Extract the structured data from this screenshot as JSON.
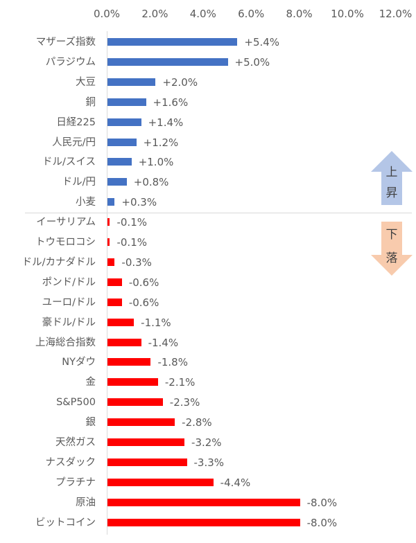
{
  "chart_data": {
    "type": "bar",
    "orientation": "horizontal",
    "title": "",
    "xlabel": "",
    "ylabel": "",
    "xlim": [
      0,
      12
    ],
    "x_ticks": [
      "0.0%",
      "2.0%",
      "4.0%",
      "6.0%",
      "8.0%",
      "10.0%",
      "12.0%"
    ],
    "x_axis_position": "top",
    "grid": false,
    "note": "Bar lengths show absolute magnitude; rising items blue, falling items red",
    "categories": [
      "マザーズ指数",
      "パラジウム",
      "大豆",
      "銅",
      "日経225",
      "人民元/円",
      "ドル/スイス",
      "ドル/円",
      "小麦",
      "イーサリアム",
      "トウモロコシ",
      "ドル/カナダドル",
      "ポンド/ドル",
      "ユーロ/ドル",
      "豪ドル/ドル",
      "上海総合指数",
      "NYダウ",
      "金",
      "S&P500",
      "銀",
      "天然ガス",
      "ナスダック",
      "プラチナ",
      "原油",
      "ビットコイン"
    ],
    "values": [
      5.4,
      5.0,
      2.0,
      1.6,
      1.4,
      1.2,
      1.0,
      0.8,
      0.3,
      -0.1,
      -0.1,
      -0.3,
      -0.6,
      -0.6,
      -1.1,
      -1.4,
      -1.8,
      -2.1,
      -2.3,
      -2.8,
      -3.2,
      -3.3,
      -4.4,
      -8.0,
      -8.0
    ],
    "data_labels": [
      "+5.4%",
      "+5.0%",
      "+2.0%",
      "+1.6%",
      "+1.4%",
      "+1.2%",
      "+1.0%",
      "+0.8%",
      "+0.3%",
      "-0.1%",
      "-0.1%",
      "-0.3%",
      "-0.6%",
      "-0.6%",
      "-1.1%",
      "-1.4%",
      "-1.8%",
      "-2.1%",
      "-2.3%",
      "-2.8%",
      "-3.2%",
      "-3.3%",
      "-4.4%",
      "-8.0%",
      "-8.0%"
    ],
    "series_colors": {
      "up": "#4472c4",
      "down": "#ff0000"
    },
    "annotations": [
      {
        "text": "上昇",
        "type": "up-arrow",
        "color": "#b4c6e7"
      },
      {
        "text": "下落",
        "type": "down-arrow",
        "color": "#f8cbad"
      }
    ]
  },
  "ticks": [
    "0.0%",
    "2.0%",
    "4.0%",
    "6.0%",
    "8.0%",
    "10.0%",
    "12.0%"
  ],
  "rows": [
    {
      "label": "マザーズ指数",
      "value": "+5.4%"
    },
    {
      "label": "パラジウム",
      "value": "+5.0%"
    },
    {
      "label": "大豆",
      "value": "+2.0%"
    },
    {
      "label": "銅",
      "value": "+1.6%"
    },
    {
      "label": "日経225",
      "value": "+1.4%"
    },
    {
      "label": "人民元/円",
      "value": "+1.2%"
    },
    {
      "label": "ドル/スイス",
      "value": "+1.0%"
    },
    {
      "label": "ドル/円",
      "value": "+0.8%"
    },
    {
      "label": "小麦",
      "value": "+0.3%"
    },
    {
      "label": "イーサリアム",
      "value": "-0.1%"
    },
    {
      "label": "トウモロコシ",
      "value": "-0.1%"
    },
    {
      "label": "ドル/カナダドル",
      "value": "-0.3%"
    },
    {
      "label": "ポンド/ドル",
      "value": "-0.6%"
    },
    {
      "label": "ユーロ/ドル",
      "value": "-0.6%"
    },
    {
      "label": "豪ドル/ドル",
      "value": "-1.1%"
    },
    {
      "label": "上海総合指数",
      "value": "-1.4%"
    },
    {
      "label": "NYダウ",
      "value": "-1.8%"
    },
    {
      "label": "金",
      "value": "-2.1%"
    },
    {
      "label": "S&P500",
      "value": "-2.3%"
    },
    {
      "label": "銀",
      "value": "-2.8%"
    },
    {
      "label": "天然ガス",
      "value": "-3.2%"
    },
    {
      "label": "ナスダック",
      "value": "-3.3%"
    },
    {
      "label": "プラチナ",
      "value": "-4.4%"
    },
    {
      "label": "原油",
      "value": "-8.0%"
    },
    {
      "label": "ビットコイン",
      "value": "-8.0%"
    }
  ],
  "arrows": {
    "up": {
      "line1": "上",
      "line2": "昇"
    },
    "down": {
      "line1": "下",
      "line2": "落"
    }
  }
}
